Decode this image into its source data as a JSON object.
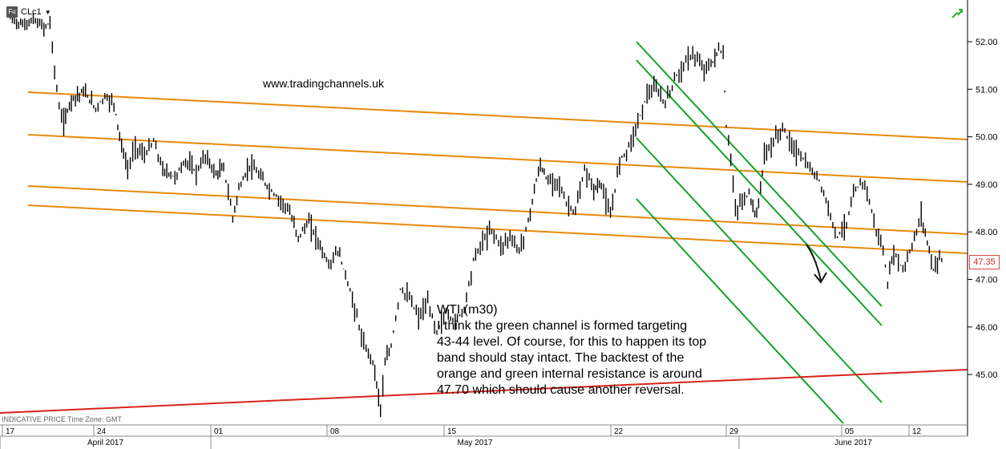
{
  "header": {
    "symbol": "CLc1",
    "icon": "fu-icon",
    "dropdown_icon": "chevron-down-icon"
  },
  "watermark": "www.tradingchannels.uk",
  "annotation": {
    "lines": [
      "WTI (m30)",
      "I think the green channel is formed targeting",
      "43-44 level. Of course, for this to happen its top",
      "band should stay intact. The backtest of the",
      "orange and green internal resistance is around",
      "47.70 which should cause another reversal."
    ]
  },
  "footer_note": "INDICATIVE PRICE   Time Zone: GMT",
  "colors": {
    "orange": "#e8890c",
    "green": "#12a32a",
    "red": "#d8231a",
    "candle": "#000000",
    "last_price": "#d22222"
  },
  "chart_data": {
    "type": "line",
    "title": "",
    "series": [],
    "y_ticks": [
      "45.00",
      "46.00",
      "47.00",
      "48.00",
      "49.00",
      "50.00",
      "51.00",
      "52.00"
    ],
    "ylim": [
      44.0,
      52.7
    ],
    "x_day_ticks": [
      {
        "label": "17",
        "day": 0
      },
      {
        "label": "24",
        "day": 7
      },
      {
        "label": "01",
        "day": 14
      },
      {
        "label": "08",
        "day": 21
      },
      {
        "label": "15",
        "day": 28
      },
      {
        "label": "22",
        "day": 35
      },
      {
        "label": "29",
        "day": 42
      },
      {
        "label": "05",
        "day": 49
      },
      {
        "label": "12",
        "day": 56
      }
    ],
    "x_months": [
      {
        "label": "April 2017",
        "start": 0,
        "end": 14
      },
      {
        "label": "May 2017",
        "start": 14,
        "end": 45
      },
      {
        "label": "June 2017",
        "start": 45,
        "end": 59
      }
    ],
    "xlim": [
      0,
      59
    ],
    "last_price": "47.35",
    "price_path": [
      [
        0.0,
        52.5
      ],
      [
        0.8,
        52.35
      ],
      [
        1.5,
        52.45
      ],
      [
        2.2,
        52.3
      ],
      [
        2.6,
        52.4
      ],
      [
        2.9,
        51.4
      ],
      [
        3.2,
        50.6
      ],
      [
        3.5,
        50.3
      ],
      [
        4.0,
        50.8
      ],
      [
        4.8,
        50.95
      ],
      [
        5.6,
        50.6
      ],
      [
        6.2,
        50.85
      ],
      [
        6.8,
        50.7
      ],
      [
        7.3,
        49.8
      ],
      [
        7.7,
        49.3
      ],
      [
        8.2,
        49.8
      ],
      [
        8.8,
        49.6
      ],
      [
        9.4,
        49.9
      ],
      [
        10.0,
        49.3
      ],
      [
        10.8,
        49.15
      ],
      [
        11.5,
        49.5
      ],
      [
        12.2,
        49.25
      ],
      [
        12.8,
        49.6
      ],
      [
        13.5,
        49.2
      ],
      [
        14.0,
        49.35
      ],
      [
        14.6,
        48.3
      ],
      [
        15.0,
        48.9
      ],
      [
        15.7,
        49.4
      ],
      [
        16.3,
        49.2
      ],
      [
        17.0,
        48.9
      ],
      [
        17.6,
        48.7
      ],
      [
        18.2,
        48.5
      ],
      [
        18.9,
        47.9
      ],
      [
        19.6,
        48.2
      ],
      [
        20.2,
        47.8
      ],
      [
        20.9,
        47.3
      ],
      [
        21.5,
        47.6
      ],
      [
        22.0,
        47.1
      ],
      [
        22.6,
        46.4
      ],
      [
        23.2,
        45.6
      ],
      [
        23.8,
        45.3
      ],
      [
        24.3,
        44.3
      ],
      [
        24.6,
        45.2
      ],
      [
        25.0,
        45.6
      ],
      [
        25.6,
        46.8
      ],
      [
        26.2,
        46.6
      ],
      [
        26.8,
        46.2
      ],
      [
        27.4,
        46.5
      ],
      [
        28.0,
        45.9
      ],
      [
        28.6,
        46.3
      ],
      [
        29.2,
        46.1
      ],
      [
        29.8,
        46.4
      ],
      [
        30.4,
        47.4
      ],
      [
        31.0,
        47.8
      ],
      [
        31.6,
        48.05
      ],
      [
        32.2,
        47.7
      ],
      [
        32.8,
        47.9
      ],
      [
        33.4,
        47.6
      ],
      [
        34.0,
        48.2
      ],
      [
        34.4,
        48.9
      ],
      [
        34.8,
        49.4
      ],
      [
        35.3,
        49.05
      ],
      [
        35.9,
        49.1
      ],
      [
        36.5,
        48.6
      ],
      [
        37.1,
        48.4
      ],
      [
        37.7,
        49.3
      ],
      [
        38.3,
        48.9
      ],
      [
        38.8,
        49.0
      ],
      [
        39.4,
        48.3
      ],
      [
        40.0,
        49.5
      ],
      [
        40.6,
        49.8
      ],
      [
        41.2,
        50.3
      ],
      [
        41.8,
        50.9
      ],
      [
        42.4,
        51.0
      ],
      [
        43.0,
        50.7
      ],
      [
        43.6,
        51.2
      ],
      [
        44.2,
        51.5
      ],
      [
        44.8,
        51.75
      ],
      [
        45.4,
        51.45
      ],
      [
        46.0,
        51.5
      ],
      [
        46.5,
        51.85
      ],
      [
        46.8,
        51.7
      ],
      [
        47.0,
        50.2
      ],
      [
        47.3,
        49.6
      ],
      [
        47.6,
        48.4
      ],
      [
        47.9,
        48.6
      ],
      [
        48.5,
        48.8
      ],
      [
        49.0,
        48.3
      ],
      [
        49.5,
        49.6
      ],
      [
        50.1,
        49.9
      ],
      [
        50.7,
        50.2
      ],
      [
        51.3,
        49.8
      ],
      [
        51.9,
        49.6
      ],
      [
        52.5,
        49.3
      ],
      [
        53.1,
        49.1
      ],
      [
        53.7,
        48.5
      ],
      [
        54.3,
        47.9
      ],
      [
        54.9,
        48.2
      ],
      [
        55.5,
        48.9
      ],
      [
        56.1,
        49.05
      ],
      [
        56.7,
        48.2
      ],
      [
        57.3,
        47.6
      ],
      [
        57.6,
        46.9
      ],
      [
        58.0,
        47.6
      ],
      [
        58.6,
        47.2
      ],
      [
        59.2,
        47.7
      ],
      [
        59.8,
        48.35
      ],
      [
        60.2,
        47.8
      ],
      [
        60.6,
        47.2
      ],
      [
        61.0,
        47.5
      ],
      [
        61.3,
        47.35
      ]
    ]
  }
}
